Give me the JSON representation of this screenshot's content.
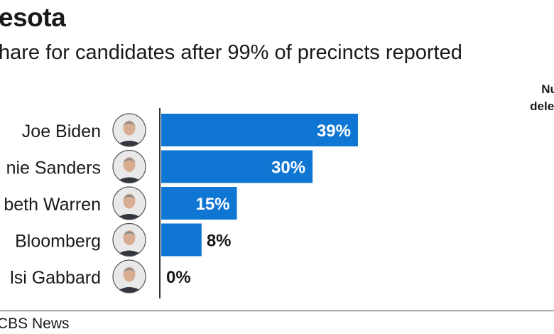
{
  "header": {
    "title": "esota",
    "subtitle": "hare for candidates after 99% of precincts reported",
    "column_header_line1": "Num",
    "column_header_line2": "delega"
  },
  "footer": {
    "source": "CBS News"
  },
  "colors": {
    "bar": "#0f76d4",
    "axis": "#333333",
    "label_inside": "#ffffff",
    "label_outside": "#1a1a1a"
  },
  "chart_data": {
    "type": "bar",
    "orientation": "horizontal",
    "title": "esota",
    "subtitle": "hare for candidates after 99% of precincts reported",
    "categories": [
      "Joe Biden",
      "nie Sanders",
      "beth Warren",
      "Bloomberg",
      "lsi Gabbard"
    ],
    "values": [
      39,
      30,
      15,
      8,
      0
    ],
    "data_labels": [
      "39%",
      "30%",
      "15%",
      "8%",
      "0%"
    ],
    "unit": "%",
    "xlim": [
      0,
      39
    ],
    "grid": false,
    "legend": "none",
    "avatars": [
      "portrait-icon",
      "portrait-icon",
      "portrait-icon",
      "portrait-icon",
      "portrait-icon"
    ]
  }
}
